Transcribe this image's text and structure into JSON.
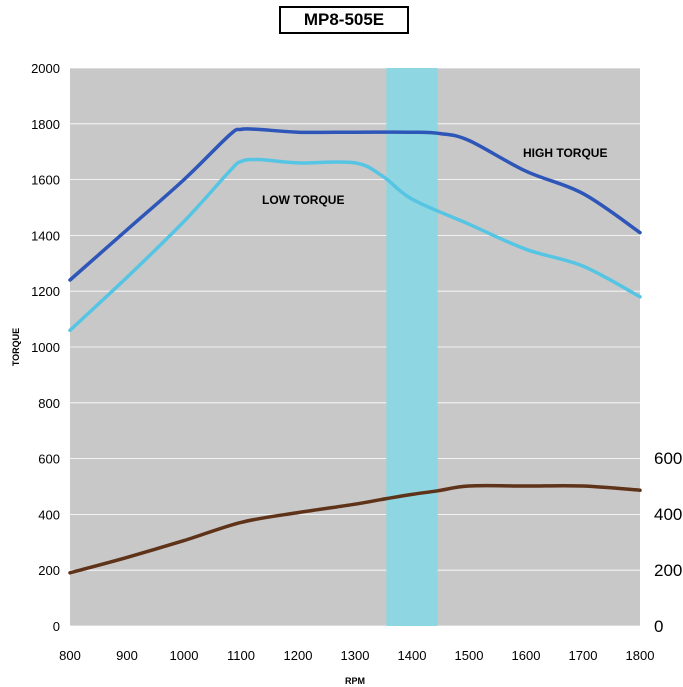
{
  "chart_data": {
    "type": "line",
    "title": "MP8-505E",
    "xlabel": "RPM",
    "ylabel": "TORQUE",
    "xlim": [
      800,
      1800
    ],
    "ylim": [
      0,
      2000
    ],
    "x_ticks": [
      "800",
      "900",
      "1000",
      "1100",
      "1200",
      "1300",
      "1400",
      "1500",
      "1600",
      "1700",
      "1800"
    ],
    "y_ticks": [
      "0",
      "200",
      "400",
      "600",
      "800",
      "1000",
      "1200",
      "1400",
      "1600",
      "1800",
      "2000"
    ],
    "y2_ticks": [
      "0",
      "200",
      "400",
      "600"
    ],
    "y2lim": [
      0,
      600
    ],
    "grid": "horizontal",
    "highlight_band": [
      1355,
      1445
    ],
    "annotations": {
      "high": "HIGH TORQUE",
      "low": "LOW TORQUE"
    },
    "series": [
      {
        "name": "HIGH TORQUE",
        "color": "#2e56b8",
        "x": [
          800,
          900,
          1000,
          1080,
          1100,
          1130,
          1200,
          1300,
          1400,
          1450,
          1500,
          1600,
          1700,
          1800
        ],
        "values": [
          1240,
          1420,
          1600,
          1760,
          1780,
          1780,
          1770,
          1770,
          1770,
          1765,
          1740,
          1630,
          1550,
          1410
        ]
      },
      {
        "name": "LOW TORQUE",
        "color": "#56c5e4",
        "x": [
          800,
          900,
          1000,
          1080,
          1100,
          1130,
          1200,
          1300,
          1350,
          1400,
          1500,
          1600,
          1700,
          1800
        ],
        "values": [
          1060,
          1250,
          1450,
          1630,
          1665,
          1672,
          1660,
          1660,
          1610,
          1530,
          1440,
          1350,
          1290,
          1180
        ]
      },
      {
        "color": "#5e3319",
        "axis": "right",
        "x": [
          800,
          900,
          1000,
          1100,
          1200,
          1300,
          1355,
          1400,
          1445,
          1500,
          1600,
          1700,
          1800
        ],
        "values": [
          190,
          245,
          305,
          370,
          405,
          435,
          455,
          470,
          483,
          500,
          500,
          500,
          485
        ]
      }
    ]
  }
}
